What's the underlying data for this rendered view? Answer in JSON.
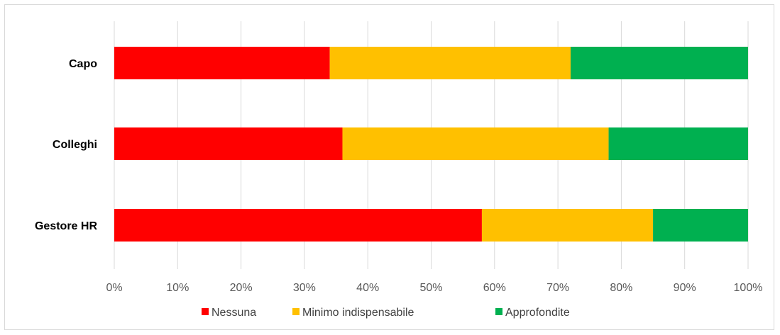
{
  "chart_data": {
    "type": "bar",
    "orientation": "horizontal",
    "stacked": "percent",
    "categories": [
      "Capo",
      "Colleghi",
      "Gestore HR"
    ],
    "series": [
      {
        "name": "Nessuna",
        "color": "#ff0000",
        "values": [
          34,
          36,
          58
        ]
      },
      {
        "name": "Minimo indispensabile",
        "color": "#ffc000",
        "values": [
          38,
          42,
          27
        ]
      },
      {
        "name": "Approfondite",
        "color": "#00b050",
        "values": [
          28,
          22,
          15
        ]
      }
    ],
    "xticks": [
      "0%",
      "10%",
      "20%",
      "30%",
      "40%",
      "50%",
      "60%",
      "70%",
      "80%",
      "90%",
      "100%"
    ],
    "xlim": [
      0,
      100
    ],
    "grid": true,
    "legend_position": "bottom",
    "title": "",
    "xlabel": "",
    "ylabel": ""
  }
}
